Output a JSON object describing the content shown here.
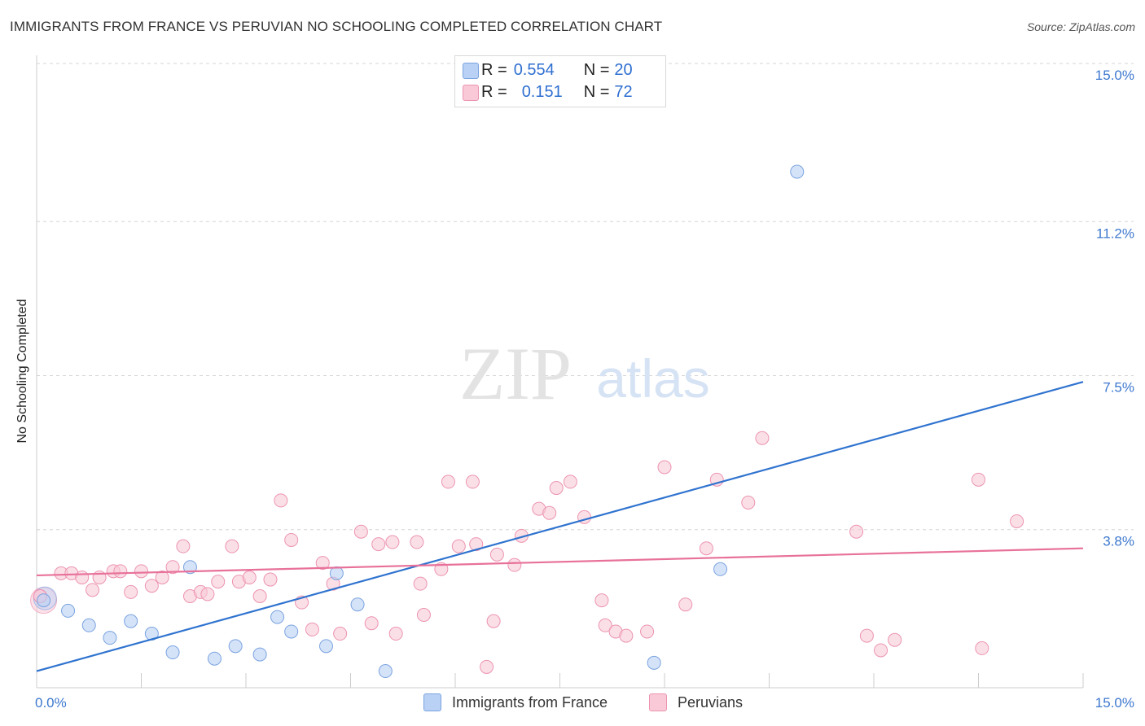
{
  "title": "IMMIGRANTS FROM FRANCE VS PERUVIAN NO SCHOOLING COMPLETED CORRELATION CHART",
  "source": "Source: ZipAtlas.com",
  "watermark": {
    "zip": "ZIP",
    "atlas": "atlas"
  },
  "legend_top": [
    {
      "r_label": "R =",
      "r_value": "0.554",
      "n_label": "N =",
      "n_value": "20"
    },
    {
      "r_label": "R =",
      "r_value": "0.151",
      "n_label": "N =",
      "n_value": "72"
    }
  ],
  "legend_bottom": [
    "Immigrants from France",
    "Peruvians"
  ],
  "colors": {
    "france_fill": "#b9d1f5",
    "france_stroke": "#7aa3df",
    "france_line": "#2f73cf",
    "peru_fill": "#f9c9d7",
    "peru_stroke": "#ec94b0",
    "peru_line": "#e8719a",
    "tick_text": "#3d78cf",
    "grid": "#d6d6d6"
  },
  "chart_data": {
    "type": "scatter",
    "xlabel": "",
    "ylabel": "No Schooling Completed",
    "xlim": [
      0,
      15
    ],
    "ylim": [
      0,
      15
    ],
    "x_tick_labels": [
      {
        "v": 0,
        "t": "0.0%"
      },
      {
        "v": 15,
        "t": "15.0%"
      }
    ],
    "y_ticks": [
      {
        "v": 3.8,
        "t": "3.8%"
      },
      {
        "v": 7.5,
        "t": "7.5%"
      },
      {
        "v": 11.2,
        "t": "11.2%"
      },
      {
        "v": 15.0,
        "t": "15.0%"
      }
    ],
    "grid": "horizontal dashed",
    "legend_placement": "top-center",
    "series": [
      {
        "name": "Immigrants from France",
        "points": [
          [
            0.1,
            2.1
          ],
          [
            0.45,
            1.85
          ],
          [
            0.75,
            1.5
          ],
          [
            1.05,
            1.2
          ],
          [
            1.35,
            1.6
          ],
          [
            1.65,
            1.3
          ],
          [
            1.95,
            0.85
          ],
          [
            2.2,
            2.9
          ],
          [
            2.55,
            0.7
          ],
          [
            2.85,
            1.0
          ],
          [
            3.2,
            0.8
          ],
          [
            3.45,
            1.7
          ],
          [
            3.65,
            1.35
          ],
          [
            4.15,
            1.0
          ],
          [
            4.3,
            2.75
          ],
          [
            4.6,
            2.0
          ],
          [
            5.0,
            0.4
          ],
          [
            8.85,
            0.6
          ],
          [
            9.8,
            2.85
          ],
          [
            10.9,
            12.4
          ]
        ],
        "trend": [
          [
            0,
            0.4
          ],
          [
            15,
            7.35
          ]
        ]
      },
      {
        "name": "Peruvians",
        "points": [
          [
            0.05,
            2.2
          ],
          [
            0.35,
            2.75
          ],
          [
            0.5,
            2.75
          ],
          [
            0.65,
            2.65
          ],
          [
            0.8,
            2.35
          ],
          [
            0.9,
            2.65
          ],
          [
            1.1,
            2.8
          ],
          [
            1.2,
            2.8
          ],
          [
            1.35,
            2.3
          ],
          [
            1.5,
            2.8
          ],
          [
            1.65,
            2.45
          ],
          [
            1.8,
            2.65
          ],
          [
            1.95,
            2.9
          ],
          [
            2.1,
            3.4
          ],
          [
            2.2,
            2.2
          ],
          [
            2.35,
            2.3
          ],
          [
            2.45,
            2.25
          ],
          [
            2.6,
            2.55
          ],
          [
            2.8,
            3.4
          ],
          [
            2.9,
            2.55
          ],
          [
            3.05,
            2.65
          ],
          [
            3.2,
            2.2
          ],
          [
            3.35,
            2.6
          ],
          [
            3.5,
            4.5
          ],
          [
            3.65,
            3.55
          ],
          [
            3.8,
            2.05
          ],
          [
            3.95,
            1.4
          ],
          [
            4.1,
            3.0
          ],
          [
            4.25,
            2.5
          ],
          [
            4.35,
            1.3
          ],
          [
            4.65,
            3.75
          ],
          [
            4.8,
            1.55
          ],
          [
            4.9,
            3.45
          ],
          [
            5.1,
            3.5
          ],
          [
            5.15,
            1.3
          ],
          [
            5.45,
            3.5
          ],
          [
            5.5,
            2.5
          ],
          [
            5.55,
            1.75
          ],
          [
            5.8,
            2.85
          ],
          [
            5.9,
            4.95
          ],
          [
            6.05,
            3.4
          ],
          [
            6.25,
            4.95
          ],
          [
            6.3,
            3.45
          ],
          [
            6.45,
            0.5
          ],
          [
            6.55,
            1.6
          ],
          [
            6.6,
            3.2
          ],
          [
            6.85,
            2.95
          ],
          [
            6.95,
            3.65
          ],
          [
            7.2,
            4.3
          ],
          [
            7.35,
            4.2
          ],
          [
            7.45,
            4.8
          ],
          [
            7.65,
            4.95
          ],
          [
            7.85,
            4.1
          ],
          [
            8.1,
            2.1
          ],
          [
            8.15,
            1.5
          ],
          [
            8.3,
            1.35
          ],
          [
            8.45,
            1.25
          ],
          [
            8.75,
            1.35
          ],
          [
            9.0,
            5.3
          ],
          [
            9.3,
            2.0
          ],
          [
            9.6,
            3.35
          ],
          [
            9.75,
            5.0
          ],
          [
            10.2,
            4.45
          ],
          [
            10.4,
            6.0
          ],
          [
            11.75,
            3.75
          ],
          [
            11.9,
            1.25
          ],
          [
            12.1,
            0.9
          ],
          [
            12.3,
            1.15
          ],
          [
            13.5,
            5.0
          ],
          [
            13.55,
            0.95
          ],
          [
            14.05,
            4.0
          ],
          [
            0.05,
            2.2
          ]
        ],
        "trend": [
          [
            0,
            2.7
          ],
          [
            15,
            3.35
          ]
        ]
      }
    ]
  }
}
